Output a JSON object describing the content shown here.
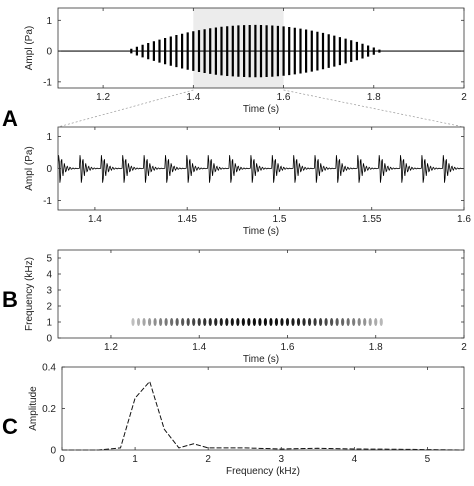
{
  "panel_labels": [
    "A",
    "B",
    "C"
  ],
  "chart_data": [
    {
      "type": "line",
      "panel": "A",
      "description_values": "waveform envelope (burst of pulses)",
      "xlabel": "Time (s)",
      "ylabel": "Ampl (Pa)",
      "xlim": [
        1.1,
        2.0
      ],
      "ylim": [
        -1.2,
        1.4
      ],
      "xticks": [
        "1.2",
        "1.4",
        "1.6",
        "1.8",
        "2"
      ],
      "xtick_values": [
        1.2,
        1.4,
        1.6,
        1.8,
        2.0
      ],
      "yticks": [
        "-1",
        "0",
        "1"
      ],
      "ytick_values": [
        -1,
        0,
        1
      ],
      "signal": {
        "start": 1.25,
        "end": 1.82,
        "peak_amplitude": 0.85,
        "pulse_rate_hz": 80
      },
      "highlight": [
        1.4,
        1.6
      ]
    },
    {
      "type": "line",
      "panel": "A-zoom",
      "xlabel": "Time (s)",
      "ylabel": "Ampl (Pa)",
      "xlim": [
        1.38,
        1.6
      ],
      "ylim": [
        -1.3,
        1.3
      ],
      "xticks": [
        "1.4",
        "1.45",
        "1.5",
        "1.55",
        "1.6"
      ],
      "xtick_values": [
        1.4,
        1.45,
        1.5,
        1.55,
        1.6
      ],
      "yticks": [
        "-1",
        "0",
        "1"
      ],
      "ytick_values": [
        -1,
        0,
        1
      ],
      "signal": {
        "pulse_count": 19,
        "peak_amplitude": 0.85
      }
    },
    {
      "type": "heatmap",
      "panel": "B",
      "xlabel": "Time (s)",
      "ylabel": "Frequency (kHz)",
      "xlim": [
        1.08,
        2.0
      ],
      "ylim": [
        0,
        5.5
      ],
      "xticks": [
        "1.2",
        "1.4",
        "1.6",
        "1.8",
        "2"
      ],
      "xtick_values": [
        1.2,
        1.4,
        1.6,
        1.8,
        2.0
      ],
      "yticks": [
        "0",
        "1",
        "2",
        "3",
        "4",
        "5"
      ],
      "ytick_values": [
        0,
        1,
        2,
        3,
        4,
        5
      ],
      "band": {
        "start": 1.25,
        "end": 1.82,
        "center_khz": 1.0,
        "width_khz": 0.5
      }
    },
    {
      "type": "line",
      "panel": "C",
      "xlabel": "Frequency (kHz)",
      "ylabel": "Amplitude",
      "xlim": [
        0,
        5.5
      ],
      "ylim": [
        0,
        0.4
      ],
      "xticks": [
        "0",
        "1",
        "2",
        "3",
        "4",
        "5"
      ],
      "xtick_values": [
        0,
        1,
        2,
        3,
        4,
        5
      ],
      "yticks": [
        "0",
        "0.2",
        "0.4"
      ],
      "ytick_values": [
        0,
        0.2,
        0.4
      ],
      "x": [
        0,
        0.5,
        0.8,
        1.0,
        1.2,
        1.4,
        1.6,
        1.8,
        2.0,
        2.5,
        3.0,
        3.5,
        4.0,
        4.5,
        5.0,
        5.5
      ],
      "y": [
        0,
        0.0,
        0.01,
        0.25,
        0.33,
        0.1,
        0.01,
        0.03,
        0.01,
        0.01,
        0.005,
        0.008,
        0.005,
        0.004,
        0.002,
        0.0
      ]
    }
  ]
}
